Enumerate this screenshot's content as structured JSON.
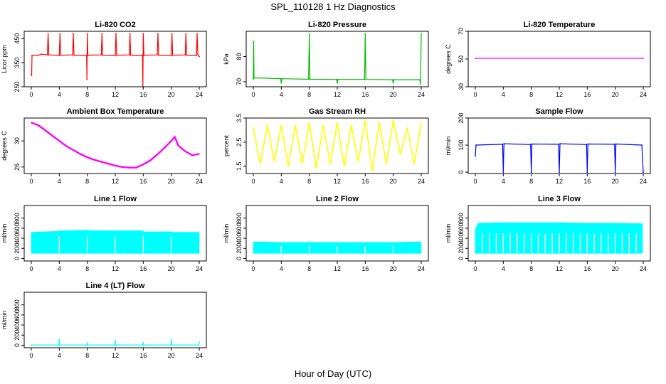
{
  "page": {
    "title": "SPL_110128  1 Hz Diagnostics",
    "xlabel": "Hour of Day (UTC)"
  },
  "chart_data": [
    {
      "id": "co2",
      "type": "line",
      "title": "Li-820 CO2",
      "ylabel": "Licor ppm",
      "color": "#ff0000",
      "xlim": [
        0,
        24
      ],
      "ylim": [
        250,
        480
      ],
      "xticks": [
        0,
        4,
        8,
        12,
        16,
        20,
        24
      ],
      "yticks": [
        250,
        350,
        450
      ],
      "points": [
        [
          0,
          300
        ],
        [
          0.05,
          298
        ],
        [
          0.1,
          380
        ],
        [
          1,
          381
        ],
        [
          1.5,
          385
        ],
        [
          2.3,
          382
        ],
        [
          2.4,
          470
        ],
        [
          2.5,
          382
        ],
        [
          4,
          380
        ],
        [
          4.1,
          470
        ],
        [
          4.2,
          381
        ],
        [
          5.9,
          382
        ],
        [
          6,
          470
        ],
        [
          6.1,
          381
        ],
        [
          7.9,
          380
        ],
        [
          7.95,
          280
        ],
        [
          8,
          470
        ],
        [
          8.1,
          381
        ],
        [
          10,
          382
        ],
        [
          10.1,
          470
        ],
        [
          10.2,
          381
        ],
        [
          12,
          380
        ],
        [
          12.1,
          470
        ],
        [
          12.2,
          381
        ],
        [
          14,
          382
        ],
        [
          14.1,
          470
        ],
        [
          14.2,
          381
        ],
        [
          15.9,
          380
        ],
        [
          15.95,
          250
        ],
        [
          16,
          470
        ],
        [
          16.1,
          381
        ],
        [
          18,
          382
        ],
        [
          18.1,
          470
        ],
        [
          18.2,
          381
        ],
        [
          20,
          380
        ],
        [
          20.1,
          470
        ],
        [
          20.2,
          381
        ],
        [
          22,
          382
        ],
        [
          22.1,
          470
        ],
        [
          22.2,
          381
        ],
        [
          23.6,
          380
        ],
        [
          23.7,
          470
        ],
        [
          23.8,
          385
        ],
        [
          24,
          375
        ]
      ]
    },
    {
      "id": "pressure",
      "type": "line",
      "title": "Li-820 Pressure",
      "ylabel": "kPa",
      "color": "#00bb00",
      "xlim": [
        0,
        24
      ],
      "ylim": [
        68,
        90
      ],
      "xticks": [
        0,
        4,
        8,
        12,
        16,
        20,
        24
      ],
      "yticks": [
        70,
        80
      ],
      "points": [
        [
          0,
          71
        ],
        [
          0.05,
          86
        ],
        [
          0.1,
          71.5
        ],
        [
          1,
          71.5
        ],
        [
          3.9,
          71.2
        ],
        [
          4,
          69.5
        ],
        [
          4.1,
          71.2
        ],
        [
          7.9,
          71
        ],
        [
          8,
          89
        ],
        [
          8.1,
          71
        ],
        [
          11.9,
          70.9
        ],
        [
          12,
          69.5
        ],
        [
          12.1,
          70.9
        ],
        [
          15.9,
          70.9
        ],
        [
          16,
          89
        ],
        [
          16.1,
          70.9
        ],
        [
          19.9,
          70.8
        ],
        [
          20,
          69.5
        ],
        [
          20.1,
          70.8
        ],
        [
          23.8,
          70.8
        ],
        [
          23.9,
          69
        ],
        [
          24,
          89
        ]
      ]
    },
    {
      "id": "licor-temp",
      "type": "line",
      "title": "Li-820 Temperature",
      "ylabel": "degrees C",
      "color": "#ff00ff",
      "xlim": [
        0,
        24
      ],
      "ylim": [
        30,
        70
      ],
      "xticks": [
        0,
        4,
        8,
        12,
        16,
        20,
        24
      ],
      "yticks": [
        30,
        50,
        70
      ],
      "points": [
        [
          0,
          50.5
        ],
        [
          24,
          50.5
        ]
      ]
    },
    {
      "id": "box-temp",
      "type": "line",
      "title": "Ambient Box Temperature",
      "ylabel": "degrees C",
      "color": "#ff00ff",
      "xlim": [
        0,
        24
      ],
      "ylim": [
        25,
        33.5
      ],
      "xticks": [
        0,
        4,
        8,
        12,
        16,
        20,
        24
      ],
      "yticks": [
        26,
        30
      ],
      "points": [
        [
          0,
          32.8
        ],
        [
          1,
          32.4
        ],
        [
          2,
          31.6
        ],
        [
          3,
          30.8
        ],
        [
          4,
          30
        ],
        [
          5,
          29.2
        ],
        [
          6,
          28.6
        ],
        [
          7,
          28
        ],
        [
          8,
          27.5
        ],
        [
          9,
          27.1
        ],
        [
          10,
          26.8
        ],
        [
          11,
          26.5
        ],
        [
          12,
          26.2
        ],
        [
          13,
          26
        ],
        [
          14,
          25.9
        ],
        [
          15,
          25.9
        ],
        [
          16,
          26.4
        ],
        [
          17,
          27
        ],
        [
          18,
          27.9
        ],
        [
          19,
          28.9
        ],
        [
          20,
          30
        ],
        [
          20.5,
          30.6
        ],
        [
          21,
          29.3
        ],
        [
          22,
          28.4
        ],
        [
          23,
          27.8
        ],
        [
          24,
          28
        ]
      ]
    },
    {
      "id": "rh",
      "type": "line",
      "title": "Gas Stream RH",
      "ylabel": "percent",
      "color": "#ffff00",
      "xlim": [
        0,
        24
      ],
      "ylim": [
        1.2,
        3.5
      ],
      "xticks": [
        0,
        4,
        8,
        12,
        16,
        20,
        24
      ],
      "yticks": [
        1.5,
        2.5,
        3.5
      ],
      "points": [
        [
          0,
          3.1
        ],
        [
          1,
          1.6
        ],
        [
          2,
          3.2
        ],
        [
          3,
          1.7
        ],
        [
          4,
          3.2
        ],
        [
          5,
          1.5
        ],
        [
          6,
          3.2
        ],
        [
          7,
          1.6
        ],
        [
          8,
          3.3
        ],
        [
          9,
          1.4
        ],
        [
          10,
          3.2
        ],
        [
          11,
          1.6
        ],
        [
          12,
          3.3
        ],
        [
          13,
          1.5
        ],
        [
          14,
          3.2
        ],
        [
          15,
          1.7
        ],
        [
          16,
          3.4
        ],
        [
          17,
          1.3
        ],
        [
          18,
          3.3
        ],
        [
          19,
          1.6
        ],
        [
          20,
          3.4
        ],
        [
          21,
          2
        ],
        [
          22,
          3.1
        ],
        [
          23,
          1.6
        ],
        [
          24,
          3.3
        ]
      ]
    },
    {
      "id": "sample-flow",
      "type": "line",
      "title": "Sample Flow",
      "ylabel": "ml/min",
      "color": "#0000ff",
      "xlim": [
        0,
        24
      ],
      "ylim": [
        -5,
        200
      ],
      "xticks": [
        0,
        4,
        8,
        12,
        16,
        20,
        24
      ],
      "yticks": [
        0,
        100,
        200
      ],
      "points": [
        [
          0,
          60
        ],
        [
          0.1,
          100
        ],
        [
          3.9,
          103
        ],
        [
          4,
          0
        ],
        [
          4.1,
          105
        ],
        [
          7.9,
          102
        ],
        [
          8,
          0
        ],
        [
          8.1,
          104
        ],
        [
          11.9,
          103
        ],
        [
          12,
          0
        ],
        [
          12.1,
          105
        ],
        [
          15.9,
          102
        ],
        [
          16,
          0
        ],
        [
          16.1,
          104
        ],
        [
          19.9,
          103
        ],
        [
          20,
          0
        ],
        [
          20.1,
          104
        ],
        [
          23.8,
          100
        ],
        [
          24,
          0
        ]
      ]
    },
    {
      "id": "line1",
      "type": "area",
      "title": "Line 1 Flow",
      "ylabel": "ml/min",
      "color": "#00ffff",
      "xlim": [
        0,
        24
      ],
      "ylim": [
        -50,
        1050
      ],
      "xticks": [
        0,
        4,
        8,
        12,
        16,
        20,
        24
      ],
      "yticks": [
        0,
        200,
        400,
        600,
        800
      ],
      "low": 100,
      "high": [
        [
          0,
          520
        ],
        [
          3.9,
          540
        ],
        [
          4.1,
          550
        ],
        [
          7.9,
          560
        ],
        [
          8.1,
          555
        ],
        [
          11.9,
          550
        ],
        [
          12.1,
          550
        ],
        [
          15.9,
          550
        ],
        [
          16.1,
          530
        ],
        [
          19.9,
          530
        ],
        [
          20.1,
          520
        ],
        [
          24,
          520
        ]
      ],
      "gaps": [
        4,
        8,
        12,
        16,
        20
      ]
    },
    {
      "id": "line2",
      "type": "area",
      "title": "Line 2 Flow",
      "ylabel": "ml/min",
      "color": "#00ffff",
      "xlim": [
        0,
        24
      ],
      "ylim": [
        -50,
        1050
      ],
      "xticks": [
        0,
        4,
        8,
        12,
        16,
        20,
        24
      ],
      "yticks": [
        0,
        200,
        400,
        600,
        800
      ],
      "low": 100,
      "high": [
        [
          0,
          330
        ],
        [
          4,
          320
        ],
        [
          8,
          320
        ],
        [
          12,
          320
        ],
        [
          16,
          320
        ],
        [
          20,
          320
        ],
        [
          24,
          330
        ]
      ],
      "gaps": [
        4,
        8,
        12,
        16,
        20
      ]
    },
    {
      "id": "line3",
      "type": "area",
      "title": "Line 3 Flow",
      "ylabel": "ml/min",
      "color": "#00ffff",
      "xlim": [
        0,
        24
      ],
      "ylim": [
        -50,
        1050
      ],
      "xticks": [
        0,
        4,
        8,
        12,
        16,
        20,
        24
      ],
      "yticks": [
        0,
        200,
        400,
        600,
        800
      ],
      "low": 100,
      "high": [
        [
          0,
          580
        ],
        [
          0.4,
          700
        ],
        [
          4,
          710
        ],
        [
          8,
          710
        ],
        [
          12,
          710
        ],
        [
          16,
          700
        ],
        [
          20,
          700
        ],
        [
          23.9,
          690
        ]
      ],
      "gaps": [
        1,
        2,
        3,
        4,
        5,
        6,
        7,
        8,
        9,
        10,
        11,
        12,
        13,
        14,
        15,
        16,
        17,
        18,
        19,
        20,
        21,
        22,
        23
      ]
    },
    {
      "id": "line4",
      "type": "line",
      "title": "Line 4 (LT) Flow",
      "ylabel": "ml/min",
      "color": "#00ffff",
      "xlim": [
        0,
        24
      ],
      "ylim": [
        -50,
        1050
      ],
      "xticks": [
        0,
        4,
        8,
        12,
        16,
        20,
        24
      ],
      "yticks": [
        0,
        200,
        400,
        600,
        800
      ],
      "points": [
        [
          0,
          5
        ],
        [
          3.95,
          5
        ],
        [
          4,
          110
        ],
        [
          4.05,
          5
        ],
        [
          7.95,
          5
        ],
        [
          8,
          50
        ],
        [
          8.05,
          5
        ],
        [
          11.95,
          5
        ],
        [
          12,
          100
        ],
        [
          12.05,
          5
        ],
        [
          15.95,
          5
        ],
        [
          16,
          50
        ],
        [
          16.05,
          5
        ],
        [
          19.95,
          5
        ],
        [
          20,
          110
        ],
        [
          20.05,
          5
        ],
        [
          23.95,
          5
        ],
        [
          24,
          60
        ]
      ]
    }
  ]
}
